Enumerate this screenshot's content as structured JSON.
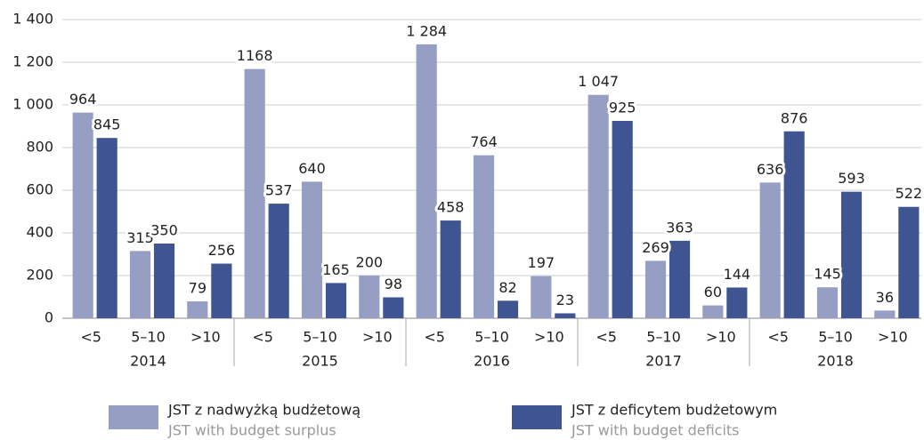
{
  "chart_data": {
    "type": "bar",
    "categories": [
      "<5",
      "5–10",
      ">10",
      "<5",
      "5–10",
      ">10",
      "<5",
      "5–10",
      ">10",
      "<5",
      "5–10",
      ">10",
      "<5",
      "5–10",
      ">10"
    ],
    "groups": [
      "2014",
      "2015",
      "2016",
      "2017",
      "2018"
    ],
    "series": [
      {
        "name": "JST z nadwyżką budżetową",
        "name_en": "JST with budget surplus",
        "color": "#979ec4",
        "values": [
          964,
          315,
          79,
          1168,
          640,
          200,
          1284,
          764,
          197,
          1047,
          269,
          60,
          636,
          145,
          36
        ],
        "value_labels": [
          "964",
          "315",
          "79",
          "1168",
          "640",
          "200",
          "1 284",
          "764",
          "197",
          "1 047",
          "269",
          "60",
          "636",
          "145",
          "36"
        ]
      },
      {
        "name": "JST z deficytem budżetowym",
        "name_en": "JST with budget deficits",
        "color": "#3e5592",
        "values": [
          845,
          350,
          256,
          537,
          165,
          98,
          458,
          82,
          23,
          925,
          363,
          144,
          876,
          593,
          522
        ]
      }
    ],
    "ylim": [
      0,
      1400
    ],
    "yticks": [
      0,
      200,
      400,
      600,
      800,
      {
        "value": 1000,
        "label": "1 000"
      },
      {
        "value": 1200,
        "label": "1 200"
      },
      {
        "value": 1400,
        "label": "1 400"
      }
    ],
    "grid": true
  }
}
